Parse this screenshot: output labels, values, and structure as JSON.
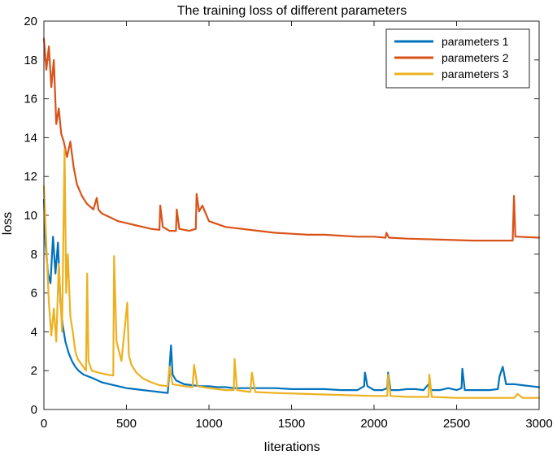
{
  "chart_data": {
    "type": "line",
    "title": "The training loss of different parameters",
    "xlabel": "Iiterations",
    "ylabel": "loss",
    "xlim": [
      0,
      3000
    ],
    "ylim": [
      0,
      20
    ],
    "xticks": [
      0,
      500,
      1000,
      1500,
      2000,
      2500,
      3000
    ],
    "yticks": [
      0,
      2,
      4,
      6,
      8,
      10,
      12,
      14,
      16,
      18,
      20
    ],
    "grid": false,
    "legend_position": "top-right",
    "series": [
      {
        "name": "parameters 1",
        "color": "#0072BD",
        "x": [
          0,
          10,
          25,
          40,
          55,
          70,
          85,
          100,
          115,
          130,
          150,
          170,
          190,
          210,
          240,
          270,
          300,
          350,
          400,
          450,
          500,
          550,
          600,
          650,
          700,
          750,
          755,
          770,
          780,
          800,
          850,
          900,
          950,
          1000,
          1050,
          1100,
          1150,
          1200,
          1250,
          1300,
          1400,
          1500,
          1600,
          1700,
          1800,
          1900,
          1940,
          1945,
          1960,
          2000,
          2050,
          2080,
          2085,
          2100,
          2150,
          2200,
          2250,
          2300,
          2330,
          2350,
          2400,
          2450,
          2500,
          2530,
          2535,
          2550,
          2600,
          2650,
          2700,
          2750,
          2760,
          2780,
          2800,
          2850,
          2900,
          2950,
          3000
        ],
        "y": [
          10.8,
          8.5,
          7.0,
          6.5,
          8.9,
          7.0,
          8.6,
          5.5,
          4.3,
          3.5,
          2.9,
          2.5,
          2.2,
          2.0,
          1.8,
          1.7,
          1.6,
          1.4,
          1.3,
          1.2,
          1.1,
          1.05,
          1.0,
          0.95,
          0.9,
          0.85,
          1.4,
          3.3,
          1.8,
          1.5,
          1.3,
          1.25,
          1.2,
          1.2,
          1.15,
          1.15,
          1.1,
          1.1,
          1.1,
          1.1,
          1.1,
          1.05,
          1.05,
          1.05,
          1.0,
          1.0,
          1.2,
          1.9,
          1.2,
          1.0,
          1.0,
          1.1,
          1.9,
          1.0,
          1.0,
          1.05,
          1.05,
          1.0,
          1.3,
          1.0,
          1.0,
          1.1,
          1.0,
          1.1,
          2.1,
          1.0,
          1.0,
          1.0,
          1.0,
          1.05,
          1.7,
          2.2,
          1.3,
          1.3,
          1.25,
          1.2,
          1.15
        ]
      },
      {
        "name": "parameters 2",
        "color": "#D95319",
        "x": [
          0,
          15,
          30,
          45,
          60,
          75,
          90,
          105,
          120,
          140,
          160,
          180,
          200,
          230,
          260,
          300,
          320,
          330,
          350,
          400,
          450,
          500,
          550,
          600,
          650,
          700,
          705,
          720,
          760,
          800,
          805,
          820,
          880,
          920,
          925,
          940,
          960,
          1000,
          1100,
          1200,
          1300,
          1400,
          1500,
          1600,
          1700,
          1800,
          1900,
          2000,
          2070,
          2075,
          2090,
          2200,
          2400,
          2600,
          2800,
          2840,
          2848,
          2856,
          2870,
          3000
        ],
        "y": [
          19.1,
          17.5,
          18.7,
          16.6,
          18.0,
          14.7,
          15.5,
          14.2,
          13.8,
          13.0,
          13.8,
          12.5,
          11.6,
          11.0,
          10.6,
          10.3,
          10.9,
          10.3,
          10.1,
          9.9,
          9.7,
          9.6,
          9.5,
          9.4,
          9.3,
          9.25,
          10.5,
          9.4,
          9.2,
          9.2,
          10.3,
          9.3,
          9.2,
          9.3,
          11.1,
          10.2,
          10.5,
          9.7,
          9.4,
          9.3,
          9.2,
          9.1,
          9.05,
          9.0,
          9.0,
          8.95,
          8.9,
          8.9,
          8.85,
          9.1,
          8.85,
          8.8,
          8.75,
          8.7,
          8.7,
          8.7,
          11.0,
          8.9,
          8.9,
          8.85
        ]
      },
      {
        "name": "parameters 3",
        "color": "#EDB120",
        "x": [
          0,
          15,
          30,
          45,
          60,
          75,
          90,
          110,
          125,
          135,
          145,
          160,
          175,
          190,
          205,
          230,
          255,
          262,
          270,
          290,
          330,
          380,
          420,
          425,
          440,
          470,
          505,
          515,
          530,
          560,
          600,
          650,
          700,
          750,
          760,
          780,
          850,
          900,
          910,
          930,
          1000,
          1100,
          1150,
          1155,
          1170,
          1250,
          1260,
          1280,
          1400,
          1600,
          1800,
          2000,
          2080,
          2085,
          2100,
          2200,
          2330,
          2335,
          2350,
          2500,
          2700,
          2800,
          2850,
          2870,
          2900,
          3000
        ],
        "y": [
          11.5,
          8.5,
          5.5,
          3.8,
          5.2,
          3.5,
          7.5,
          4.0,
          13.4,
          6.0,
          8.0,
          4.8,
          4.0,
          3.0,
          2.6,
          2.3,
          2.0,
          7.0,
          2.5,
          2.0,
          1.9,
          1.8,
          1.75,
          7.9,
          3.5,
          2.5,
          5.5,
          2.8,
          2.3,
          1.9,
          1.6,
          1.4,
          1.25,
          1.2,
          2.2,
          1.3,
          1.2,
          1.15,
          2.3,
          1.2,
          1.1,
          1.0,
          1.0,
          2.6,
          1.0,
          0.9,
          1.9,
          0.9,
          0.85,
          0.8,
          0.75,
          0.7,
          0.7,
          1.8,
          0.7,
          0.65,
          0.65,
          1.8,
          0.65,
          0.6,
          0.6,
          0.6,
          0.6,
          0.8,
          0.6,
          0.6
        ]
      }
    ]
  }
}
